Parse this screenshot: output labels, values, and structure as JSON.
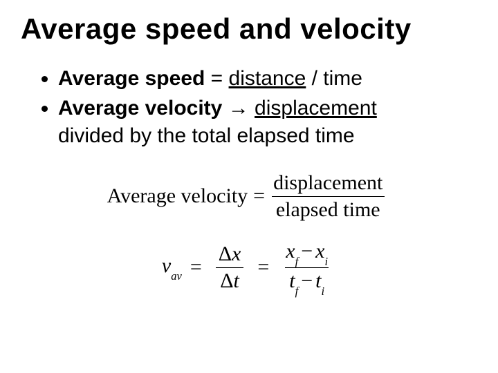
{
  "title": "Average speed and velocity",
  "bullets": {
    "b1": {
      "lead": "Average speed",
      "eq": " = ",
      "u1": "distance",
      "tail": " / time"
    },
    "b2": {
      "lead": "Average velocity",
      "arrow": " → ",
      "u1": "displacement",
      "line2": "divided by the total elapsed time"
    }
  },
  "equation1": {
    "label": "Average velocity",
    "eq": "=",
    "numerator": "displacement",
    "denominator": "elapsed time"
  },
  "equation2": {
    "v": "v",
    "v_sub": "av",
    "eq": "=",
    "delta": "Δ",
    "x": "x",
    "t": "t",
    "xf": "x",
    "xf_sub": "f",
    "xi": "x",
    "xi_sub": "i",
    "tf": "t",
    "tf_sub": "f",
    "ti": "t",
    "ti_sub": "i",
    "minus": "−"
  },
  "colors": {
    "text": "#000000",
    "background": "#ffffff"
  },
  "fonts": {
    "body": "Arial",
    "math": "Times New Roman",
    "title_size_pt": 42,
    "bullet_size_pt": 30,
    "equation_size_pt": 30
  }
}
